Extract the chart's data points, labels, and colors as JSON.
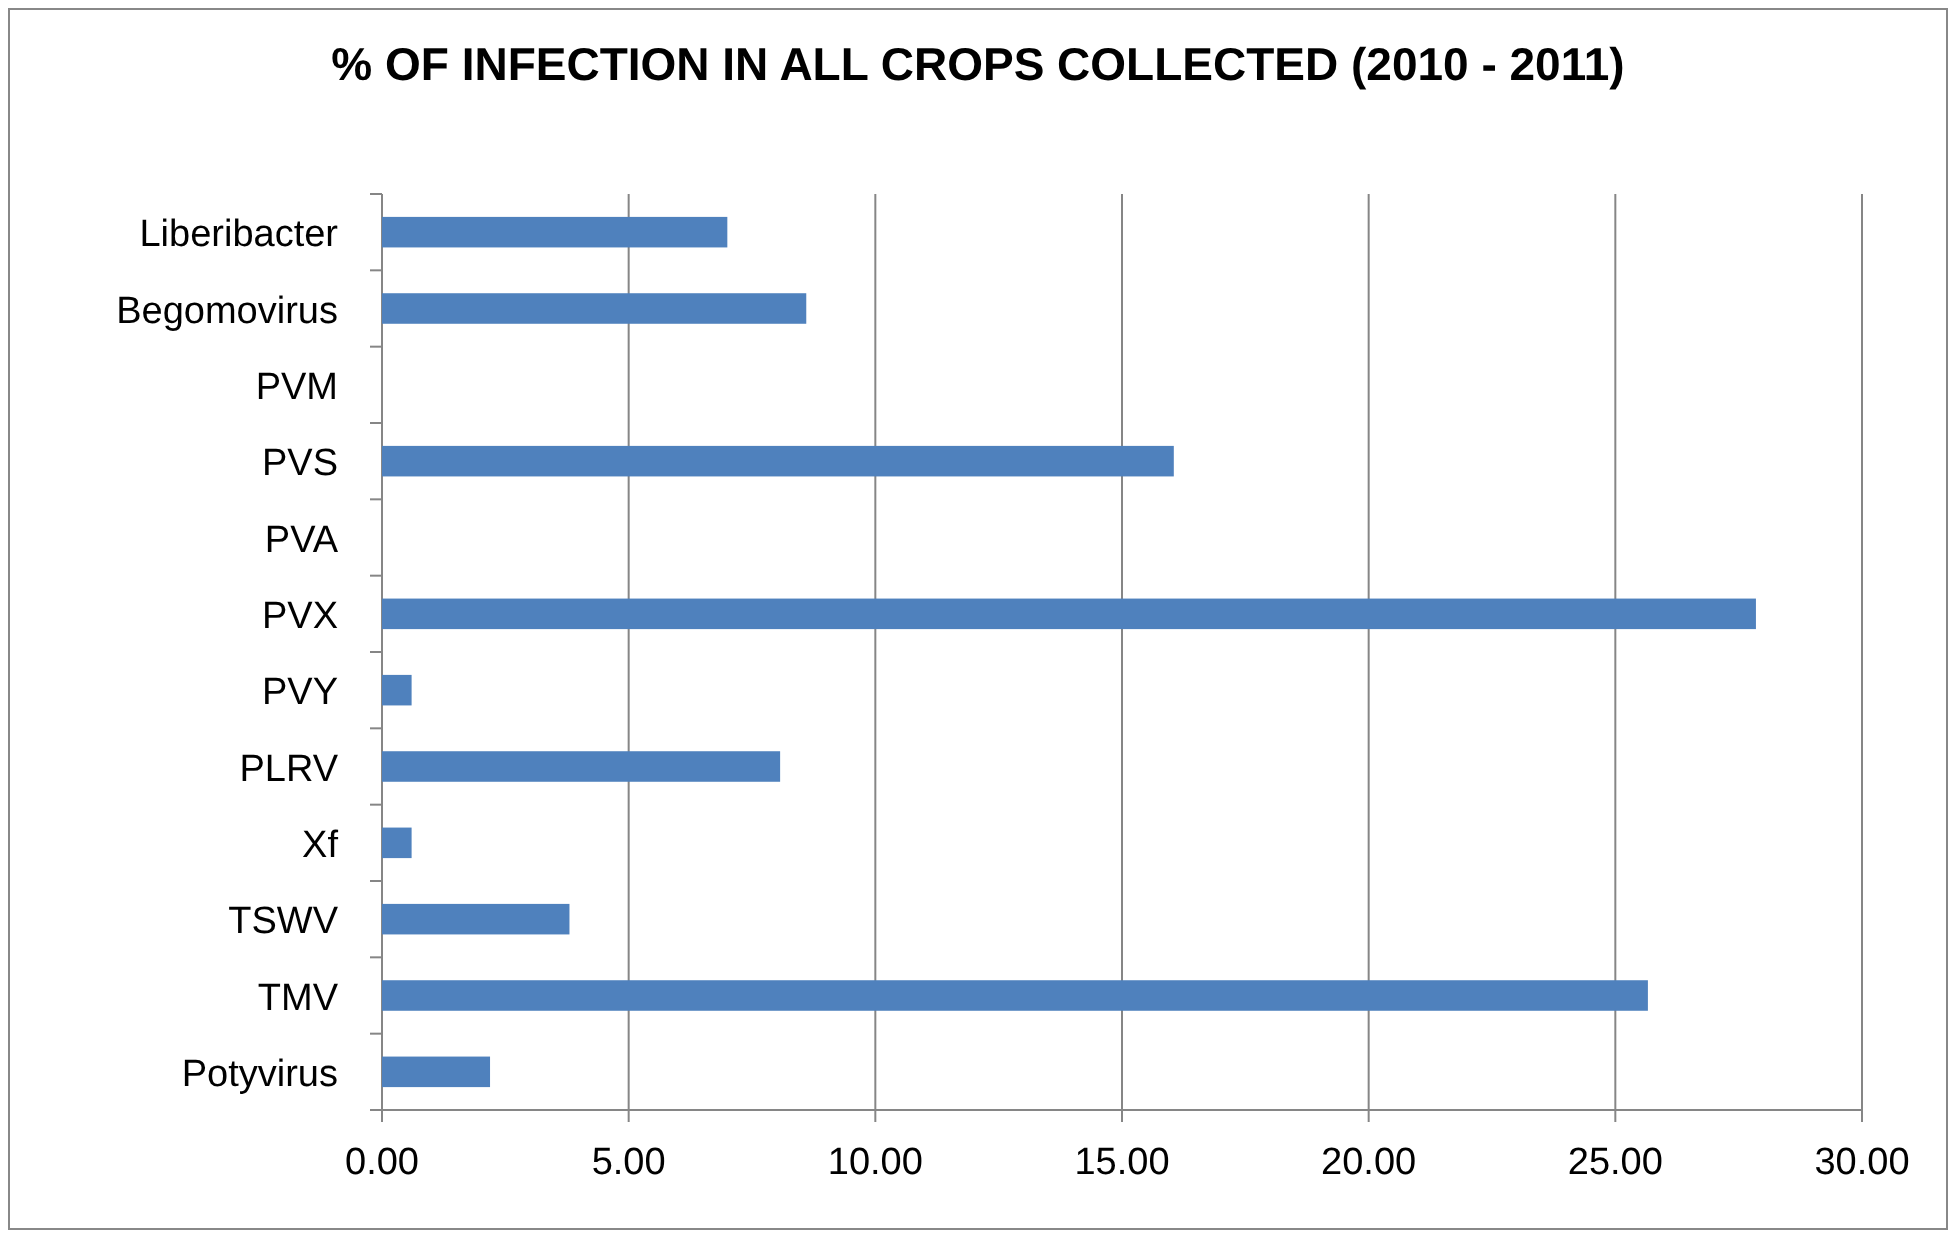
{
  "chart_data": {
    "type": "bar",
    "orientation": "horizontal",
    "title": "% OF INFECTION IN ALL CROPS COLLECTED (2010 - 2011)",
    "categories": [
      "Liberibacter",
      "Begomovirus",
      "PVM",
      "PVS",
      "PVA",
      "PVX",
      "PVY",
      "PLRV",
      "Xf",
      "TSWV",
      "TMV",
      "Potyvirus"
    ],
    "values": [
      7.0,
      8.6,
      0,
      16.05,
      0,
      27.85,
      0.6,
      8.07,
      0.6,
      3.8,
      25.66,
      2.19
    ],
    "color": "#4f81bd",
    "xlim": [
      0,
      30
    ],
    "xticks": [
      {
        "value": 0,
        "label": "0.00"
      },
      {
        "value": 5,
        "label": "5.00"
      },
      {
        "value": 10,
        "label": "10.00"
      },
      {
        "value": 15,
        "label": "15.00"
      },
      {
        "value": 20,
        "label": "20.00"
      },
      {
        "value": 25,
        "label": "25.00"
      },
      {
        "value": 30,
        "label": "30.00"
      }
    ],
    "grid": "x"
  }
}
